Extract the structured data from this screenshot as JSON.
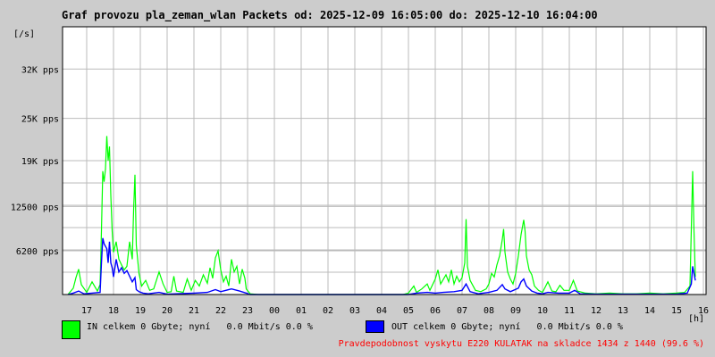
{
  "title": "Graf provozu pla_zeman_wlan Packets od: 2025-12-09 16:05:00 do: 2025-12-10 16:04:00",
  "colors": {
    "in": "#00ff00",
    "out": "#0000ff",
    "grid": "#bbbbbb",
    "plot_bg": "#ffffff",
    "footer": "#ff0000"
  },
  "legend": {
    "in_label": "IN celkem 0 Gbyte; nyní   0.0 Mbit/s 0.0 %",
    "out_label": "OUT celkem 0 Gbyte; nyní   0.0 Mbit/s 0.0 %"
  },
  "footer": "Pravdepodobnost vyskytu E220 KULATAK na skladce 1434 z 1440 (99.6 %)",
  "chart_data": {
    "type": "area",
    "title": "Graf provozu pla_zeman_wlan Packets od: 2025-12-09 16:05:00 do: 2025-12-10 16:04:00",
    "ylabel": "[/s]",
    "xlabel": "[h]",
    "ylim": [
      0,
      38000
    ],
    "y_ticks": [
      "6200 pps",
      "12500 pps",
      "19K pps",
      "25K pps",
      "32K pps"
    ],
    "y_tick_values": [
      6200,
      12500,
      19000,
      25000,
      32000
    ],
    "x_ticks": [
      "17",
      "18",
      "19",
      "20",
      "21",
      "22",
      "23",
      "00",
      "01",
      "02",
      "03",
      "04",
      "05",
      "06",
      "07",
      "08",
      "09",
      "10",
      "11",
      "12",
      "13",
      "14",
      "15",
      "16"
    ],
    "grid": true,
    "series": [
      {
        "name": "IN",
        "points": [
          [
            16.3,
            0
          ],
          [
            16.5,
            900
          ],
          [
            16.6,
            2400
          ],
          [
            16.7,
            3600
          ],
          [
            16.8,
            1400
          ],
          [
            17.0,
            300
          ],
          [
            17.2,
            1800
          ],
          [
            17.4,
            500
          ],
          [
            17.5,
            1400
          ],
          [
            17.55,
            9000
          ],
          [
            17.6,
            17500
          ],
          [
            17.65,
            16000
          ],
          [
            17.7,
            17800
          ],
          [
            17.75,
            22500
          ],
          [
            17.8,
            19000
          ],
          [
            17.85,
            21000
          ],
          [
            17.9,
            14000
          ],
          [
            17.95,
            9000
          ],
          [
            18.0,
            6000
          ],
          [
            18.1,
            7500
          ],
          [
            18.2,
            5000
          ],
          [
            18.3,
            4200
          ],
          [
            18.4,
            3500
          ],
          [
            18.5,
            4000
          ],
          [
            18.6,
            7500
          ],
          [
            18.7,
            5000
          ],
          [
            18.75,
            12000
          ],
          [
            18.8,
            17000
          ],
          [
            18.85,
            7000
          ],
          [
            18.95,
            3000
          ],
          [
            19.05,
            1200
          ],
          [
            19.2,
            2000
          ],
          [
            19.35,
            600
          ],
          [
            19.5,
            800
          ],
          [
            19.7,
            3200
          ],
          [
            19.85,
            1500
          ],
          [
            20.0,
            300
          ],
          [
            20.15,
            400
          ],
          [
            20.25,
            2600
          ],
          [
            20.35,
            500
          ],
          [
            20.6,
            300
          ],
          [
            20.75,
            2200
          ],
          [
            20.9,
            600
          ],
          [
            21.05,
            2000
          ],
          [
            21.2,
            1200
          ],
          [
            21.35,
            2800
          ],
          [
            21.5,
            1600
          ],
          [
            21.6,
            3800
          ],
          [
            21.7,
            2300
          ],
          [
            21.8,
            5200
          ],
          [
            21.9,
            6200
          ],
          [
            22.0,
            3500
          ],
          [
            22.1,
            1800
          ],
          [
            22.2,
            2600
          ],
          [
            22.3,
            1200
          ],
          [
            22.4,
            5000
          ],
          [
            22.5,
            3200
          ],
          [
            22.6,
            4000
          ],
          [
            22.7,
            1500
          ],
          [
            22.8,
            3600
          ],
          [
            22.9,
            2300
          ],
          [
            22.95,
            800
          ],
          [
            23.1,
            100
          ],
          [
            23.4,
            0
          ],
          [
            28.8,
            0
          ],
          [
            29.0,
            200
          ],
          [
            29.2,
            1200
          ],
          [
            29.3,
            300
          ],
          [
            29.5,
            800
          ],
          [
            29.7,
            1500
          ],
          [
            29.8,
            600
          ],
          [
            30.0,
            2200
          ],
          [
            30.1,
            3500
          ],
          [
            30.2,
            1500
          ],
          [
            30.4,
            2800
          ],
          [
            30.5,
            1800
          ],
          [
            30.6,
            3500
          ],
          [
            30.7,
            1500
          ],
          [
            30.8,
            2600
          ],
          [
            30.9,
            1800
          ],
          [
            31.0,
            2400
          ],
          [
            31.1,
            4500
          ],
          [
            31.15,
            10700
          ],
          [
            31.2,
            4000
          ],
          [
            31.3,
            2000
          ],
          [
            31.5,
            600
          ],
          [
            31.7,
            400
          ],
          [
            31.9,
            800
          ],
          [
            32.0,
            1500
          ],
          [
            32.1,
            3000
          ],
          [
            32.2,
            2500
          ],
          [
            32.3,
            4200
          ],
          [
            32.4,
            5500
          ],
          [
            32.5,
            7800
          ],
          [
            32.55,
            9300
          ],
          [
            32.6,
            6000
          ],
          [
            32.7,
            3200
          ],
          [
            32.8,
            2200
          ],
          [
            32.9,
            1500
          ],
          [
            33.0,
            3000
          ],
          [
            33.1,
            5500
          ],
          [
            33.2,
            8500
          ],
          [
            33.3,
            10600
          ],
          [
            33.35,
            9000
          ],
          [
            33.4,
            5500
          ],
          [
            33.5,
            3500
          ],
          [
            33.6,
            2800
          ],
          [
            33.7,
            1200
          ],
          [
            33.85,
            600
          ],
          [
            34.0,
            300
          ],
          [
            34.2,
            1800
          ],
          [
            34.35,
            500
          ],
          [
            34.5,
            400
          ],
          [
            34.65,
            1300
          ],
          [
            34.8,
            600
          ],
          [
            35.0,
            600
          ],
          [
            35.15,
            2000
          ],
          [
            35.3,
            500
          ],
          [
            35.6,
            200
          ],
          [
            36.0,
            100
          ],
          [
            36.5,
            200
          ],
          [
            37.0,
            100
          ],
          [
            37.5,
            100
          ],
          [
            38.0,
            200
          ],
          [
            38.5,
            100
          ],
          [
            39.0,
            200
          ],
          [
            39.3,
            300
          ],
          [
            39.5,
            1200
          ],
          [
            39.6,
            17500
          ],
          [
            39.65,
            9000
          ],
          [
            39.7,
            2500
          ]
        ]
      },
      {
        "name": "OUT",
        "points": [
          [
            16.3,
            0
          ],
          [
            16.5,
            200
          ],
          [
            16.7,
            500
          ],
          [
            16.9,
            100
          ],
          [
            17.2,
            200
          ],
          [
            17.5,
            300
          ],
          [
            17.55,
            4500
          ],
          [
            17.6,
            8000
          ],
          [
            17.65,
            7200
          ],
          [
            17.75,
            6500
          ],
          [
            17.8,
            4500
          ],
          [
            17.85,
            7500
          ],
          [
            17.9,
            4500
          ],
          [
            17.95,
            3800
          ],
          [
            18.0,
            2500
          ],
          [
            18.1,
            5000
          ],
          [
            18.2,
            3200
          ],
          [
            18.3,
            3800
          ],
          [
            18.4,
            3000
          ],
          [
            18.5,
            3400
          ],
          [
            18.6,
            2600
          ],
          [
            18.7,
            1800
          ],
          [
            18.8,
            2400
          ],
          [
            18.85,
            700
          ],
          [
            18.95,
            400
          ],
          [
            19.1,
            200
          ],
          [
            19.3,
            100
          ],
          [
            19.7,
            300
          ],
          [
            20.0,
            50
          ],
          [
            21.0,
            200
          ],
          [
            21.5,
            300
          ],
          [
            21.8,
            700
          ],
          [
            22.0,
            400
          ],
          [
            22.4,
            800
          ],
          [
            22.7,
            500
          ],
          [
            22.95,
            200
          ],
          [
            23.1,
            0
          ],
          [
            29.0,
            0
          ],
          [
            29.3,
            200
          ],
          [
            29.7,
            300
          ],
          [
            30.0,
            200
          ],
          [
            30.3,
            300
          ],
          [
            30.7,
            400
          ],
          [
            31.0,
            600
          ],
          [
            31.15,
            1500
          ],
          [
            31.3,
            400
          ],
          [
            31.6,
            100
          ],
          [
            32.0,
            300
          ],
          [
            32.3,
            600
          ],
          [
            32.5,
            1400
          ],
          [
            32.6,
            800
          ],
          [
            32.8,
            400
          ],
          [
            33.1,
            900
          ],
          [
            33.2,
            1800
          ],
          [
            33.3,
            2200
          ],
          [
            33.4,
            1200
          ],
          [
            33.6,
            500
          ],
          [
            33.8,
            200
          ],
          [
            34.0,
            100
          ],
          [
            34.2,
            300
          ],
          [
            34.6,
            200
          ],
          [
            35.0,
            200
          ],
          [
            35.2,
            600
          ],
          [
            35.4,
            100
          ],
          [
            36.0,
            50
          ],
          [
            37.0,
            50
          ],
          [
            38.0,
            50
          ],
          [
            39.0,
            50
          ],
          [
            39.4,
            200
          ],
          [
            39.55,
            1500
          ],
          [
            39.6,
            4000
          ],
          [
            39.7,
            2000
          ]
        ]
      }
    ]
  }
}
